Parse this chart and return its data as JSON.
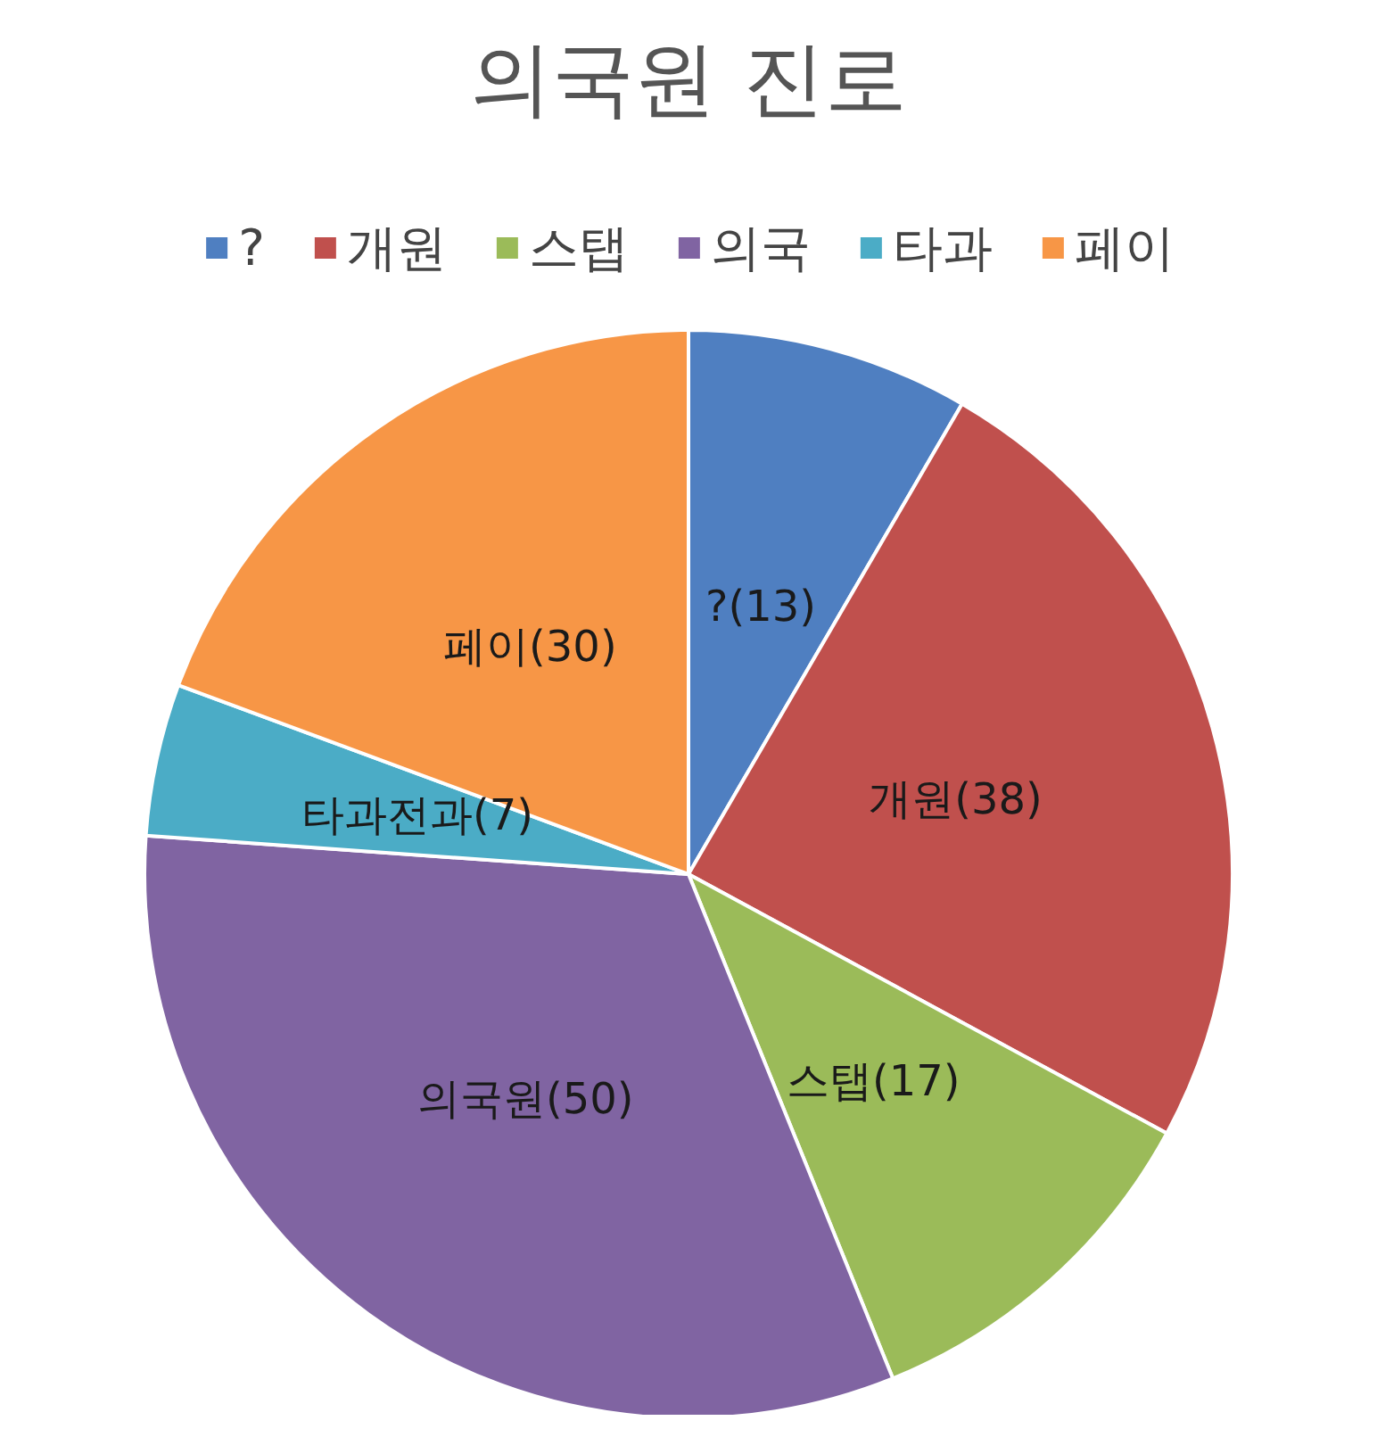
{
  "chart_data": {
    "type": "pie",
    "title": "의국원 진로",
    "categories": [
      "?",
      "개원",
      "스탭",
      "의국",
      "타과",
      "페이"
    ],
    "values": [
      13,
      38,
      17,
      50,
      7,
      30
    ],
    "colors": [
      "#4f7fc1",
      "#c0504d",
      "#9bbb59",
      "#8064a2",
      "#4bacc6",
      "#f79646"
    ],
    "value_labels": [
      "?(13)",
      "개원(38)",
      "스탭(17)",
      "의국원(50)",
      "타과전과(7)",
      "페이(30)"
    ],
    "legend": "top"
  }
}
